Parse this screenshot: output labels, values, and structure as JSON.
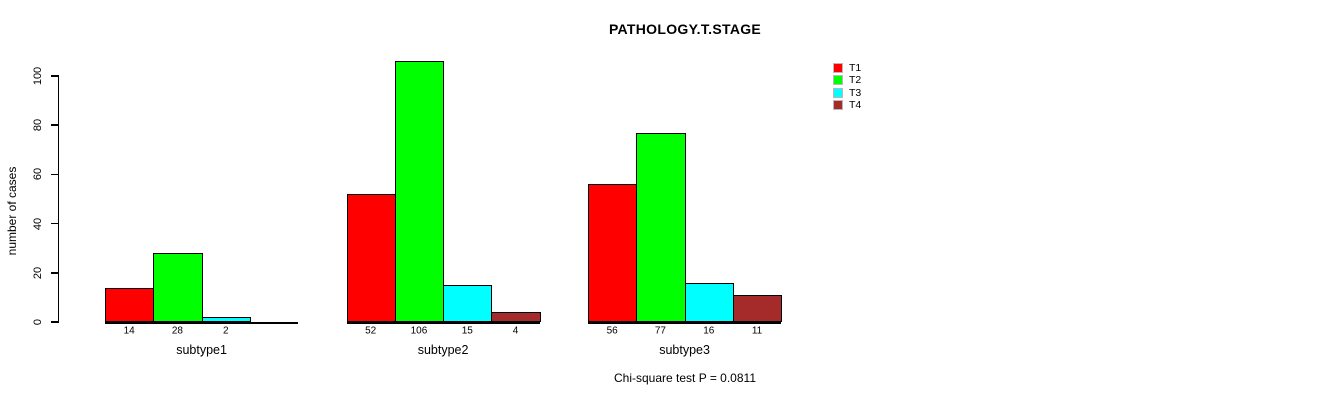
{
  "title": "PATHOLOGY.T.STAGE",
  "ylabel": "number of cases",
  "annotation": "Chi-square test P = 0.0811",
  "chart_data": {
    "type": "bar",
    "title": "PATHOLOGY.T.STAGE",
    "xlabel": "",
    "ylabel": "number of cases",
    "categories": [
      "subtype1",
      "subtype2",
      "subtype3"
    ],
    "series": [
      {
        "name": "T1",
        "color": "#ff0000",
        "values": [
          14,
          52,
          56
        ]
      },
      {
        "name": "T2",
        "color": "#00ff00",
        "values": [
          28,
          106,
          77
        ]
      },
      {
        "name": "T3",
        "color": "#00ffff",
        "values": [
          2,
          15,
          16
        ]
      },
      {
        "name": "T4",
        "color": "#a52a2a",
        "values": [
          0,
          4,
          11
        ]
      }
    ],
    "value_labels": [
      [
        "14",
        "28",
        "2",
        ""
      ],
      [
        "52",
        "106",
        "15",
        "4"
      ],
      [
        "56",
        "77",
        "16",
        "11"
      ]
    ],
    "ylim": [
      0,
      100
    ],
    "yticks": [
      0,
      20,
      40,
      60,
      80,
      100
    ],
    "grid": false,
    "legend_position": "top-right",
    "legend_entries": [
      "T1",
      "T2",
      "T3",
      "T4"
    ],
    "annotation": "Chi-square test P = 0.0811"
  }
}
